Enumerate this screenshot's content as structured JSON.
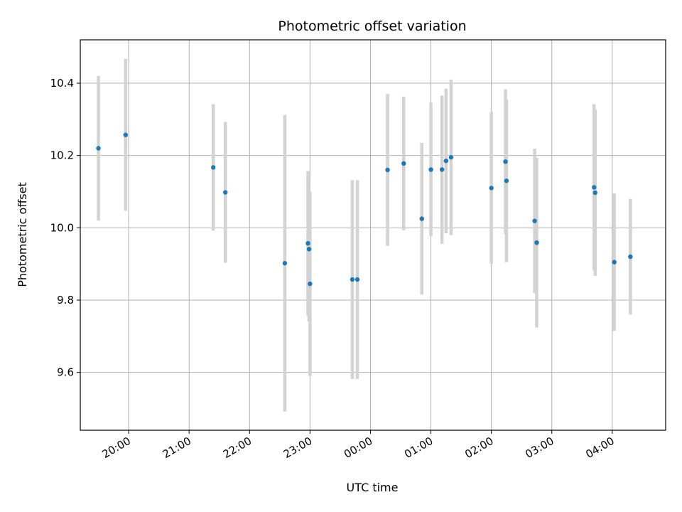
{
  "chart_data": {
    "type": "scatter",
    "title": "Photometric offset variation",
    "xlabel": "UTC time",
    "ylabel": "Photometric offset",
    "x_axis": "time",
    "xlim": [
      "19:12",
      "04:53"
    ],
    "ylim": [
      9.44,
      10.52
    ],
    "grid": true,
    "x_ticks": [
      "20:00",
      "21:00",
      "22:00",
      "23:00",
      "00:00",
      "01:00",
      "02:00",
      "03:00",
      "04:00"
    ],
    "y_ticks": [
      "9.6",
      "9.8",
      "10.0",
      "10.2",
      "10.4"
    ],
    "colors": {
      "point": "#1f77b4",
      "errorbar": "#d3d3d3",
      "grid": "#b0b0b0"
    },
    "points": [
      {
        "x": "19:30",
        "y": 10.22,
        "yerr": 0.2
      },
      {
        "x": "19:57",
        "y": 10.257,
        "yerr": 0.21
      },
      {
        "x": "21:24",
        "y": 10.167,
        "yerr": 0.175
      },
      {
        "x": "21:36",
        "y": 10.098,
        "yerr": 0.195
      },
      {
        "x": "22:35",
        "y": 9.902,
        "yerr": 0.41
      },
      {
        "x": "22:58",
        "y": 9.957,
        "yerr": 0.2
      },
      {
        "x": "22:59",
        "y": 9.941,
        "yerr": 0.2
      },
      {
        "x": "23:00",
        "y": 9.845,
        "yerr": 0.255
      },
      {
        "x": "23:42",
        "y": 9.857,
        "yerr": 0.275
      },
      {
        "x": "23:47",
        "y": 9.857,
        "yerr": 0.275
      },
      {
        "x": "00:17",
        "y": 10.16,
        "yerr": 0.21
      },
      {
        "x": "00:33",
        "y": 10.178,
        "yerr": 0.185
      },
      {
        "x": "00:51",
        "y": 10.025,
        "yerr": 0.21
      },
      {
        "x": "01:00",
        "y": 10.161,
        "yerr": 0.185
      },
      {
        "x": "01:11",
        "y": 10.161,
        "yerr": 0.205
      },
      {
        "x": "01:15",
        "y": 10.185,
        "yerr": 0.2
      },
      {
        "x": "01:20",
        "y": 10.195,
        "yerr": 0.215
      },
      {
        "x": "02:00",
        "y": 10.11,
        "yerr": 0.21
      },
      {
        "x": "02:14",
        "y": 10.183,
        "yerr": 0.2
      },
      {
        "x": "02:15",
        "y": 10.13,
        "yerr": 0.225
      },
      {
        "x": "02:43",
        "y": 10.019,
        "yerr": 0.2
      },
      {
        "x": "02:45",
        "y": 9.959,
        "yerr": 0.235
      },
      {
        "x": "03:42",
        "y": 10.112,
        "yerr": 0.23
      },
      {
        "x": "03:43",
        "y": 10.097,
        "yerr": 0.23
      },
      {
        "x": "04:02",
        "y": 9.905,
        "yerr": 0.19
      },
      {
        "x": "04:18",
        "y": 9.92,
        "yerr": 0.16
      }
    ]
  }
}
